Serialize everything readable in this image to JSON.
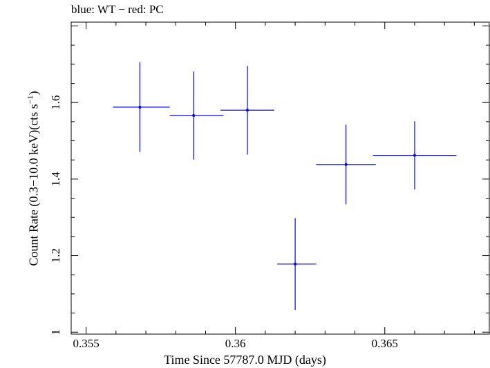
{
  "chart_data": {
    "type": "scatter",
    "title": "blue: WT − red: PC",
    "xlabel": "Time Since 57787.0 MJD (days)",
    "ylabel_main": "Count Rate (0.3−10.0 keV)(cts s",
    "ylabel_sup": "−1",
    "ylabel_end": ")",
    "xlim": [
      0.3545,
      0.3685
    ],
    "ylim": [
      0.995,
      1.81
    ],
    "x_ticks": [
      0.355,
      0.36,
      0.365
    ],
    "x_tick_labels": [
      "0.355",
      "0.36",
      "0.365"
    ],
    "y_ticks": [
      1.2,
      1.4,
      1.6
    ],
    "y_tick_labels": [
      "1.2",
      "1.4",
      "1.6"
    ],
    "color": "#0000ff",
    "series": [
      {
        "points": [
          {
            "x": 0.3568,
            "y": 1.588,
            "xerr": [
              0.0009,
              0.001
            ],
            "yerr": [
              0.117,
              0.117
            ]
          },
          {
            "x": 0.3586,
            "y": 1.566,
            "xerr": [
              0.0008,
              0.001
            ],
            "yerr": [
              0.115,
              0.115
            ]
          },
          {
            "x": 0.3604,
            "y": 1.58,
            "xerr": [
              0.0009,
              0.0009
            ],
            "yerr": [
              0.116,
              0.116
            ]
          },
          {
            "x": 0.362,
            "y": 1.178,
            "xerr": [
              0.0006,
              0.0007
            ],
            "yerr": [
              0.12,
              0.12
            ]
          },
          {
            "x": 0.3637,
            "y": 1.438,
            "xerr": [
              0.001,
              0.001
            ],
            "yerr": [
              0.104,
              0.104
            ]
          },
          {
            "x": 0.366,
            "y": 1.462,
            "xerr": [
              0.0014,
              0.0014
            ],
            "yerr": [
              0.089,
              0.089
            ]
          }
        ]
      }
    ]
  }
}
